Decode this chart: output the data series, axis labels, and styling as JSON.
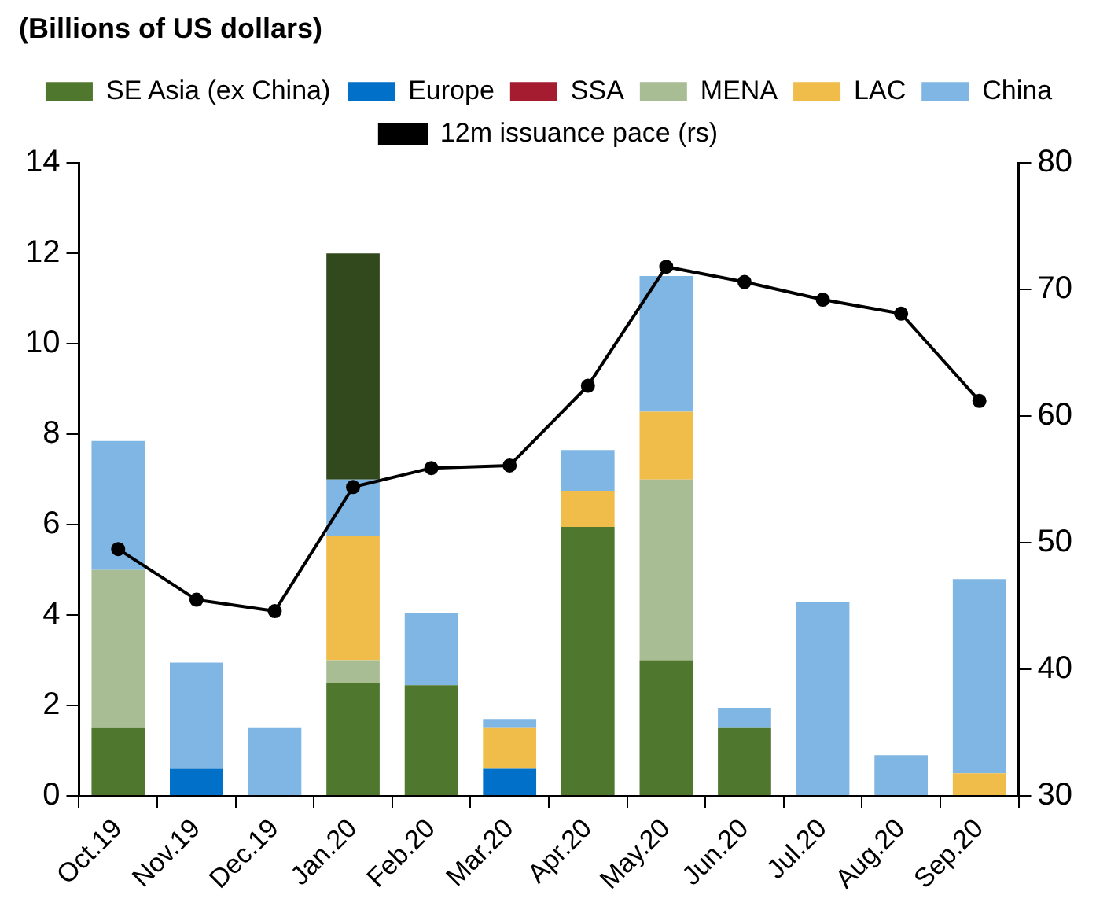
{
  "chart_data": {
    "type": "bar",
    "title": "(Billions of US dollars)",
    "stacked": true,
    "legend": "top",
    "grid": false,
    "marker": "circle",
    "categories": [
      "Oct.19",
      "Nov.19",
      "Dec.19",
      "Jan.20",
      "Feb.20",
      "Mar.20",
      "Apr.20",
      "May.20",
      "Jun.20",
      "Jul.20",
      "Aug.20",
      "Sep.20"
    ],
    "ylim": [
      0,
      14
    ],
    "yticks": [
      0,
      2,
      4,
      6,
      8,
      10,
      12,
      14
    ],
    "y2lim": [
      30,
      80
    ],
    "y2ticks": [
      30,
      40,
      50,
      60,
      70,
      80
    ],
    "series": [
      {
        "name": "SE Asia (ex China)",
        "color": "#4f772d",
        "values": [
          1.5,
          null,
          null,
          2.5,
          2.45,
          null,
          5.95,
          3.0,
          1.5,
          null,
          null,
          null
        ]
      },
      {
        "name": "Europe",
        "color": "#0070c8",
        "values": [
          null,
          0.6,
          null,
          null,
          null,
          0.6,
          null,
          null,
          null,
          null,
          null,
          null
        ]
      },
      {
        "name": "SSA",
        "color": "#a51c30",
        "values": [
          null,
          null,
          null,
          null,
          null,
          null,
          null,
          null,
          null,
          null,
          null,
          null
        ]
      },
      {
        "name": "MENA",
        "color": "#a9bd94",
        "values": [
          3.5,
          null,
          null,
          0.5,
          null,
          null,
          null,
          4.0,
          null,
          null,
          null,
          null
        ]
      },
      {
        "name": "LAC",
        "color": "#f0bd4b",
        "values": [
          null,
          null,
          null,
          2.75,
          null,
          0.9,
          0.8,
          1.5,
          null,
          null,
          null,
          0.5
        ]
      },
      {
        "name": "China",
        "color": "#80b6e4",
        "values": [
          2.85,
          2.35,
          1.5,
          1.25,
          1.6,
          0.2,
          0.9,
          3.0,
          0.45,
          4.3,
          0.9,
          4.3
        ]
      },
      {
        "color": "#32481d",
        "values": [
          null,
          null,
          null,
          5.0,
          null,
          null,
          null,
          null,
          null,
          null,
          null,
          null
        ]
      },
      {
        "name": "12m issuance pace (rs)",
        "type": "line",
        "axis": "y2",
        "color": "#000000",
        "values": [
          49.5,
          45.5,
          44.6,
          54.4,
          55.9,
          56.1,
          62.4,
          71.8,
          70.6,
          69.2,
          68.1,
          61.2
        ]
      }
    ]
  }
}
